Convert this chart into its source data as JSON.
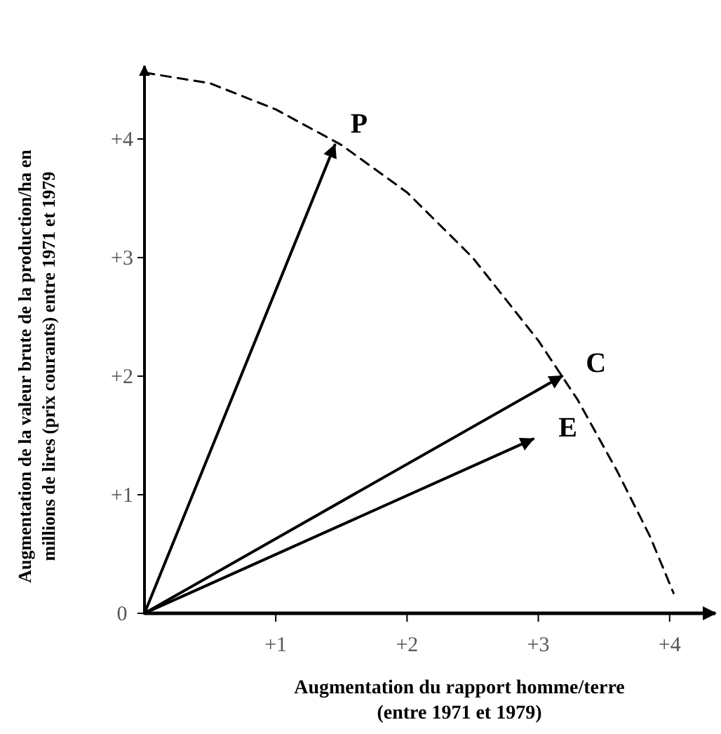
{
  "chart_data": {
    "type": "line",
    "xlabel": "Augmentation du rapport homme/terre (entre 1971 et 1979)",
    "ylabel": "Augmentation de la valeur brute de la production/ha en millions de lires (prix courants) entre 1971 et 1979",
    "xlim": [
      0,
      4.37
    ],
    "ylim": [
      0,
      4.64
    ],
    "xticks": [
      {
        "value": 1,
        "label": "+1"
      },
      {
        "value": 2,
        "label": "+2"
      },
      {
        "value": 3,
        "label": "+3"
      },
      {
        "value": 4,
        "label": "+4"
      }
    ],
    "yticks": [
      {
        "value": 0,
        "label": "0"
      },
      {
        "value": 1,
        "label": "+1"
      },
      {
        "value": 2,
        "label": "+2"
      },
      {
        "value": 3,
        "label": "+3"
      },
      {
        "value": 4,
        "label": "+4"
      }
    ],
    "marker": "none",
    "series": [
      {
        "name": "P",
        "color": "#000000",
        "x": [
          0,
          1.45
        ],
        "values": [
          0,
          3.95
        ],
        "line_style": "solid"
      },
      {
        "name": "C",
        "color": "#000000",
        "x": [
          0,
          3.18
        ],
        "values": [
          0,
          2.0
        ],
        "line_style": "solid"
      },
      {
        "name": "E",
        "color": "#000000",
        "x": [
          0,
          2.96
        ],
        "values": [
          0,
          1.47
        ],
        "line_style": "solid"
      },
      {
        "color": "#000000",
        "x": [
          0,
          0.5,
          1.0,
          1.5,
          2.0,
          2.5,
          3.0,
          3.3,
          3.6,
          3.85,
          4.03
        ],
        "values": [
          4.56,
          4.47,
          4.25,
          3.95,
          3.55,
          3.0,
          2.3,
          1.8,
          1.2,
          0.65,
          0.17
        ],
        "line_style": "dashed"
      }
    ]
  }
}
